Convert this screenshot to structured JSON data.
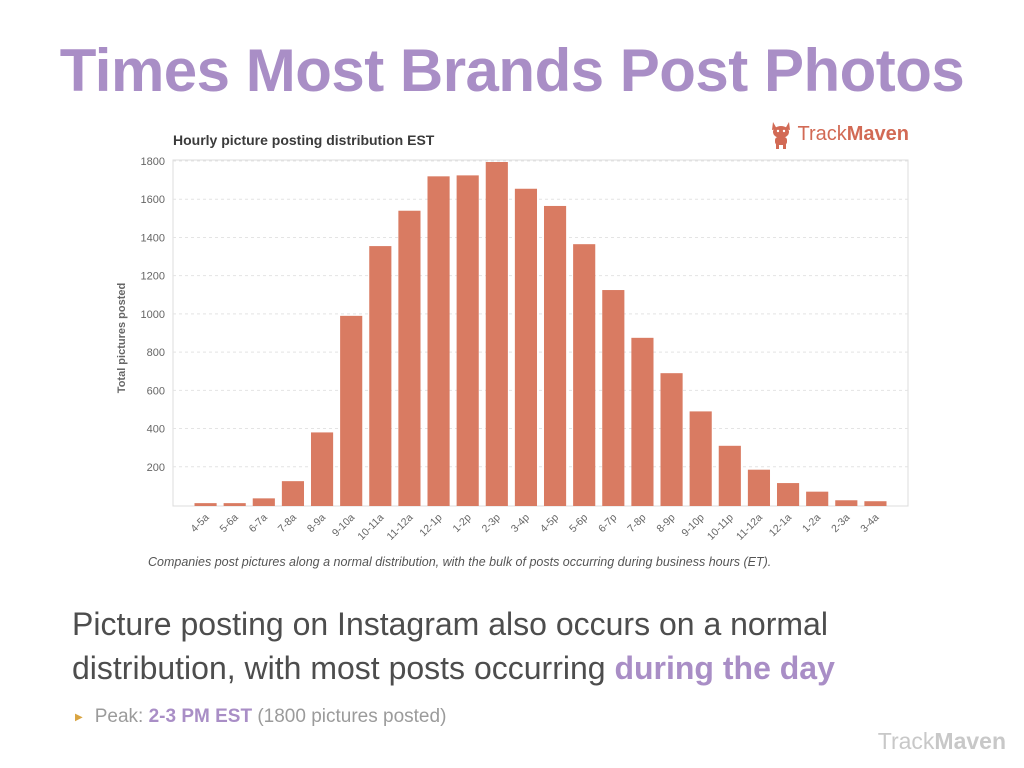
{
  "slide": {
    "title": "Times Most Brands Post Photos",
    "body_text_1": "Picture posting on Instagram also occurs on a normal distribution, with most posts occurring ",
    "body_text_highlight": "during the day",
    "bullet_prefix": "Peak: ",
    "bullet_peak": "2-3 PM EST",
    "bullet_suffix": " (1800 pictures posted)",
    "footer_brand_light": "Track",
    "footer_brand_bold": "Maven"
  },
  "logo": {
    "light": "Track",
    "bold": "Maven",
    "icon": "corgi-dog-icon"
  },
  "colors": {
    "title": "#a98ec6",
    "bar": "#d97b62",
    "highlight": "#a98ec6",
    "bullet_arrow": "#d9a441"
  },
  "chart_data": {
    "type": "bar",
    "title": "Hourly picture posting distribution EST",
    "caption": "Companies post pictures along a normal distribution, with the bulk of posts occurring during business hours (ET).",
    "xlabel": "",
    "ylabel": "Total pictures posted",
    "ylim": [
      0,
      1800
    ],
    "yticks": [
      200,
      400,
      600,
      800,
      1000,
      1200,
      1400,
      1600,
      1800
    ],
    "grid": true,
    "categories": [
      "4-5a",
      "5-6a",
      "6-7a",
      "7-8a",
      "8-9a",
      "9-10a",
      "10-11a",
      "11-12a",
      "12-1p",
      "1-2p",
      "2-3p",
      "3-4p",
      "4-5p",
      "5-6p",
      "6-7p",
      "7-8p",
      "8-9p",
      "9-10p",
      "10-11p",
      "11-12a",
      "12-1a",
      "1-2a",
      "2-3a",
      "3-4a"
    ],
    "values": [
      15,
      15,
      40,
      130,
      385,
      995,
      1360,
      1545,
      1725,
      1730,
      1800,
      1660,
      1570,
      1370,
      1130,
      880,
      695,
      495,
      315,
      190,
      120,
      75,
      30,
      25
    ]
  }
}
